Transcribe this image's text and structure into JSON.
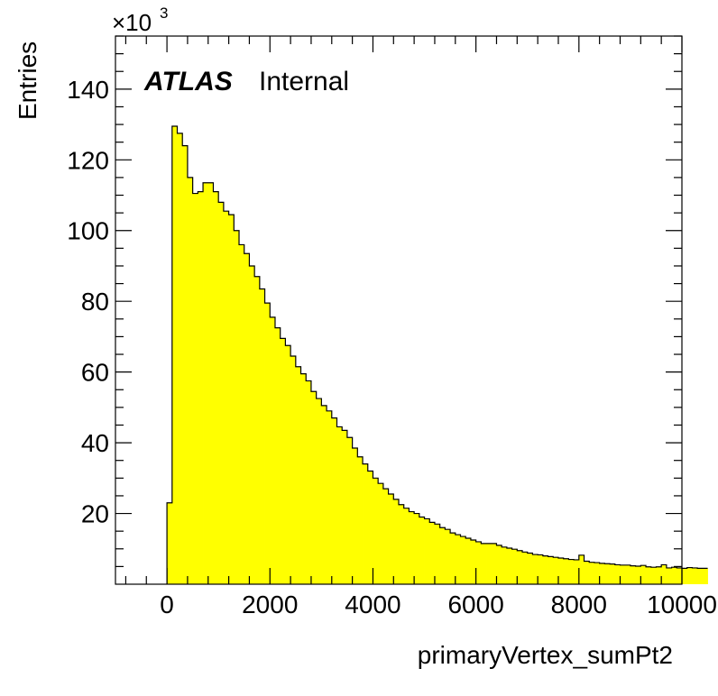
{
  "chart_data": {
    "type": "bar",
    "xlabel": "primaryVertex_sumPt2",
    "ylabel": "Entries",
    "multiplier": {
      "base": "×10",
      "exponent": "3"
    },
    "label": {
      "atlas": "ATLAS",
      "status": "Internal"
    },
    "xlim": [
      -1000,
      10000
    ],
    "ylim": [
      0,
      155
    ],
    "x_ticks": [
      0,
      2000,
      4000,
      6000,
      8000,
      10000
    ],
    "y_ticks": [
      20,
      40,
      60,
      80,
      100,
      120,
      140
    ],
    "bin_width": 100,
    "bin_start": 0,
    "values": [
      23,
      129.5,
      127.5,
      124,
      115,
      110.5,
      111,
      113.5,
      113.5,
      111,
      108,
      105.5,
      104.5,
      100,
      96,
      93.5,
      90,
      87,
      83.5,
      79.5,
      75.5,
      72.5,
      69.5,
      67.5,
      64.5,
      61.5,
      59.5,
      57.5,
      54.5,
      52.5,
      50.5,
      49,
      47,
      44.5,
      43.5,
      41.5,
      38.5,
      36,
      34,
      32,
      30,
      28.5,
      27,
      25.5,
      24,
      22.5,
      21.5,
      20.5,
      20,
      19,
      18.5,
      17.5,
      17,
      16,
      15.5,
      14.5,
      14,
      13.5,
      13,
      12.5,
      12,
      11.5,
      11.5,
      11.5,
      11,
      10.5,
      10.2,
      9.9,
      9.5,
      9.1,
      8.8,
      8.4,
      8.3,
      8,
      7.8,
      7.6,
      7.4,
      7.2,
      7,
      6.9,
      8.2,
      6.5,
      6.2,
      6.1,
      5.9,
      5.8,
      5.7,
      5.5,
      5.4,
      5.4,
      5.2,
      5.1,
      5.3,
      4.9,
      4.8,
      4.9,
      5.5,
      4.6,
      4.8,
      4.6,
      4.5,
      4.7,
      4.6,
      4.5,
      4.5
    ],
    "colors": {
      "fill": "#ffff00",
      "line": "#000000"
    },
    "legend": "none",
    "grid": false
  }
}
